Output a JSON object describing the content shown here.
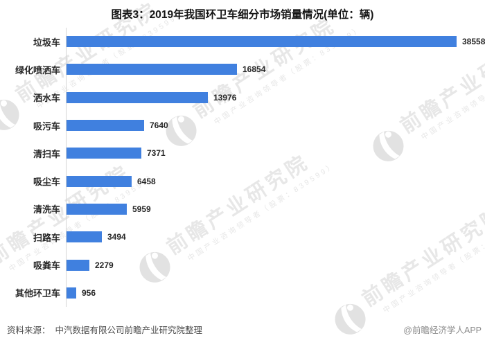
{
  "title": "图表3：2019年我国环卫车细分市场销量情况(单位：辆)",
  "chart_data": {
    "type": "bar",
    "orientation": "horizontal",
    "title": "图表3：2019年我国环卫车细分市场销量情况(单位：辆)",
    "unit": "辆",
    "categories": [
      "垃圾车",
      "绿化喷洒车",
      "洒水车",
      "吸污车",
      "清扫车",
      "吸尘车",
      "清洗车",
      "扫路车",
      "吸粪车",
      "其他环卫车"
    ],
    "values": [
      38558,
      16854,
      13976,
      7640,
      7371,
      6458,
      5959,
      3494,
      2279,
      956
    ],
    "xlim": [
      0,
      38558
    ],
    "bar_color": "#4080df",
    "grid": false,
    "legend": false,
    "value_labels": true
  },
  "footer": {
    "source_label": "资料来源：",
    "source_text": "中汽数据有限公司前瞻产业研究院整理",
    "credit": "@前瞻经济学人APP"
  },
  "watermark": {
    "main": "前瞻产业研究院",
    "sub": "中国产业咨询领导者（股票：839599）"
  },
  "colors": {
    "bar": "#4080df",
    "axis": "#d4d4d4",
    "text": "#262626",
    "watermark": "#e7e7e7"
  }
}
